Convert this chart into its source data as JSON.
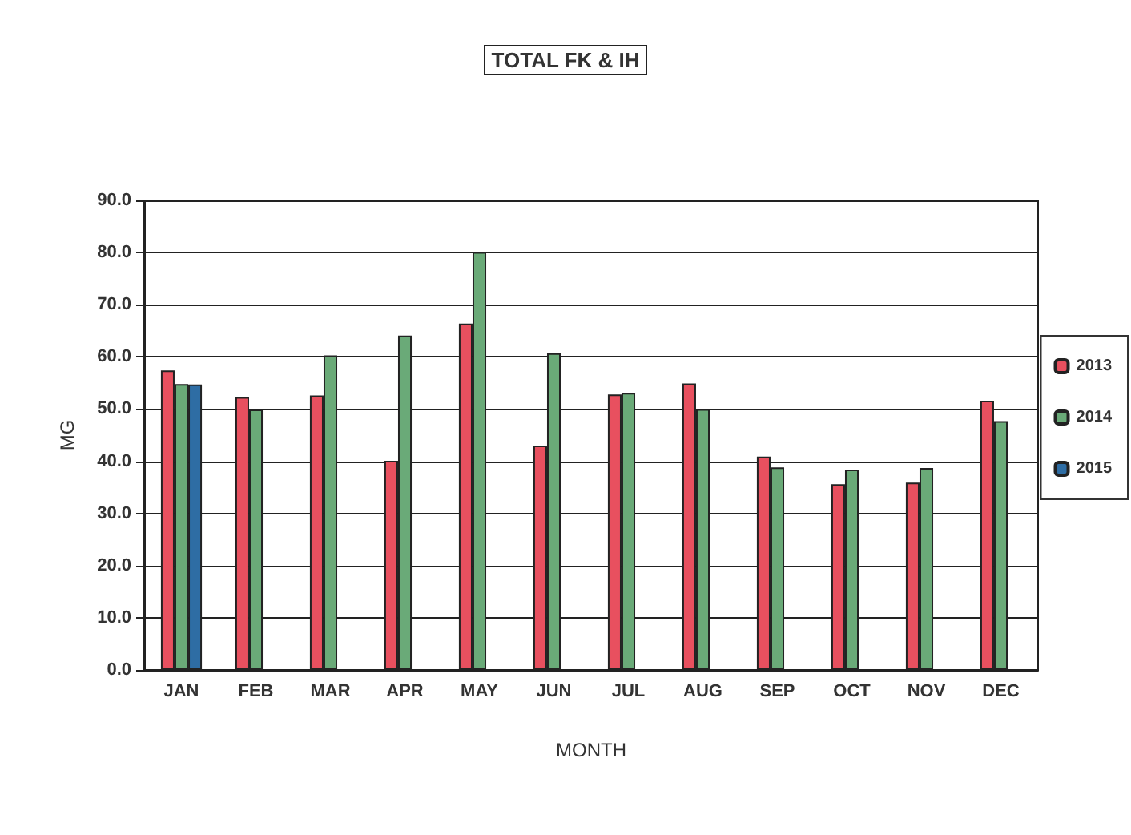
{
  "chart_data": {
    "type": "bar",
    "title": "TOTAL FK & IH",
    "xlabel": "MONTH",
    "ylabel": "MG",
    "categories": [
      "JAN",
      "FEB",
      "MAR",
      "APR",
      "MAY",
      "JUN",
      "JUL",
      "AUG",
      "SEP",
      "OCT",
      "NOV",
      "DEC"
    ],
    "series": [
      {
        "name": "2013",
        "color": "#e8505f",
        "values": [
          57.4,
          52.3,
          52.6,
          40.1,
          66.4,
          43.0,
          52.8,
          54.9,
          40.9,
          35.6,
          35.9,
          51.6
        ]
      },
      {
        "name": "2014",
        "color": "#6aaa78",
        "values": [
          54.8,
          49.9,
          60.3,
          64.1,
          80.1,
          60.7,
          53.1,
          50.0,
          38.8,
          38.4,
          38.7,
          47.7
        ]
      },
      {
        "name": "2015",
        "color": "#2e6da4",
        "values": [
          54.7,
          null,
          null,
          null,
          null,
          null,
          null,
          null,
          null,
          null,
          null,
          null
        ]
      }
    ],
    "ylim": [
      0,
      90
    ],
    "yticks": [
      {
        "value": 0,
        "label": "0.0"
      },
      {
        "value": 10,
        "label": "10.0"
      },
      {
        "value": 20,
        "label": "20.0"
      },
      {
        "value": 30,
        "label": "30.0"
      },
      {
        "value": 40,
        "label": "40.0"
      },
      {
        "value": 50,
        "label": "50.0"
      },
      {
        "value": 60,
        "label": "60.0"
      },
      {
        "value": 70,
        "label": "70.0"
      },
      {
        "value": 80,
        "label": "80.0"
      },
      {
        "value": 90,
        "label": "90.0"
      }
    ],
    "grid": "y",
    "legend": "right"
  }
}
